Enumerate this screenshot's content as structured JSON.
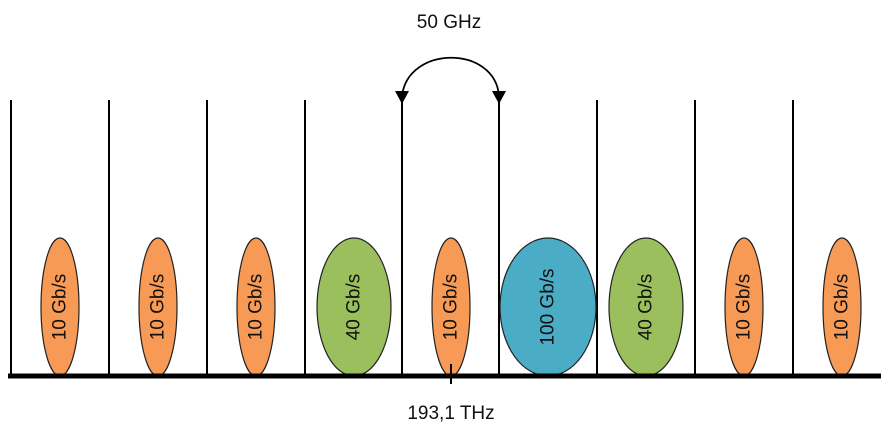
{
  "spacing_label": "50 GHz",
  "center_frequency_label": "193,1 THz",
  "colors": {
    "line": "#000000",
    "rate_10": "#F79A55",
    "rate_40": "#9BBF5D",
    "rate_100": "#4BACC6"
  },
  "channels": [
    {
      "label": "10 Gb/s",
      "rate": 10
    },
    {
      "label": "10 Gb/s",
      "rate": 10
    },
    {
      "label": "10 Gb/s",
      "rate": 10
    },
    {
      "label": "40 Gb/s",
      "rate": 40
    },
    {
      "label": "10 Gb/s",
      "rate": 10
    },
    {
      "label": "100 Gb/s",
      "rate": 100
    },
    {
      "label": "40 Gb/s",
      "rate": 40
    },
    {
      "label": "10 Gb/s",
      "rate": 10
    },
    {
      "label": "10 Gb/s",
      "rate": 10
    }
  ]
}
